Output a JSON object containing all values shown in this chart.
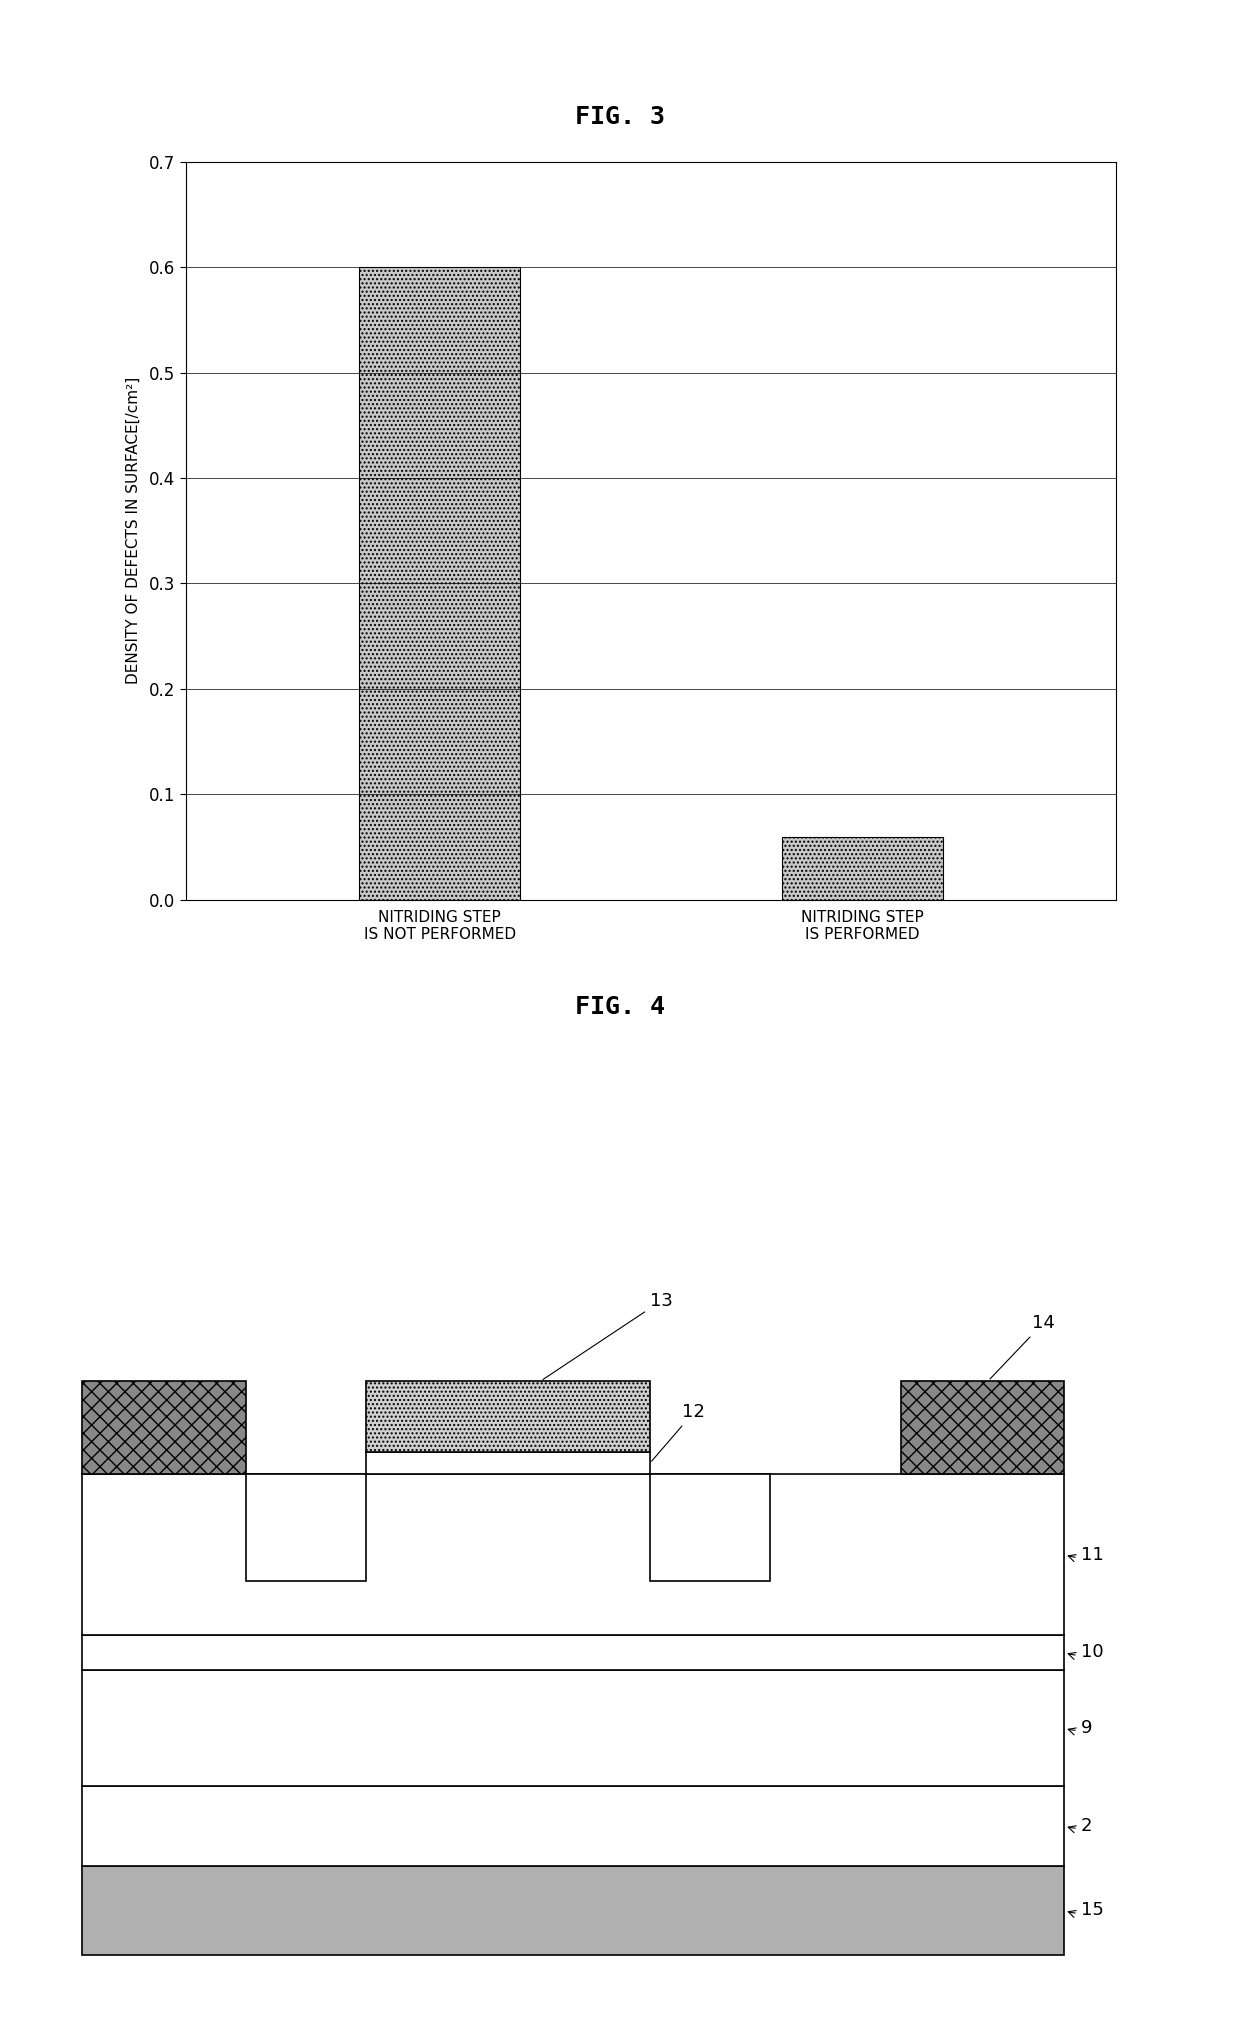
{
  "fig3_title": "FIG. 3",
  "fig4_title": "FIG. 4",
  "bar_categories": [
    "NITRIDING STEP\nIS NOT PERFORMED",
    "NITRIDING STEP\nIS PERFORMED"
  ],
  "bar_values": [
    0.6,
    0.06
  ],
  "bar_color": "#c8c8c8",
  "bar_hatch": "....",
  "ylabel": "DENSITY OF DEFECTS IN SURFACE[/cm²]",
  "ylim": [
    0,
    0.7
  ],
  "yticks": [
    0,
    0.1,
    0.2,
    0.3,
    0.4,
    0.5,
    0.6,
    0.7
  ],
  "background_color": "#ffffff",
  "title_fontsize": 18,
  "label_fontsize": 11,
  "tick_fontsize": 12,
  "diagram_label_fontsize": 13
}
